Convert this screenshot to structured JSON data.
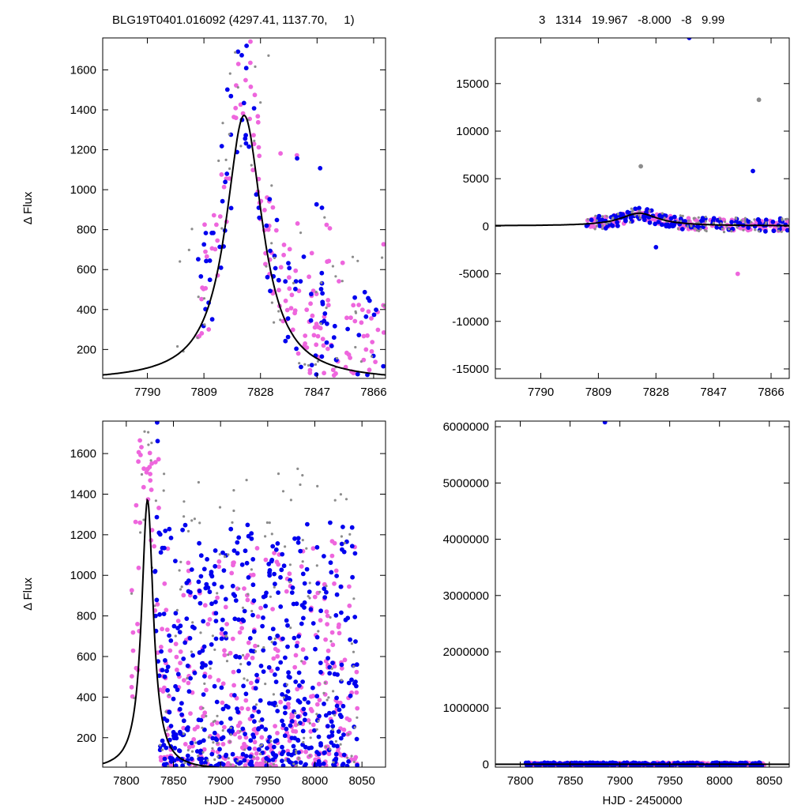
{
  "header": {
    "left": "BLG19T0401.016092 (4297.41, 1137.70,     1)",
    "right": "3   1314   19.967   -8.000   -8   9.99"
  },
  "colors": {
    "series_a": "#ee66dd",
    "series_b": "#0000ee",
    "series_c": "#8c8c8c",
    "model": "#000000",
    "axis": "#000000"
  },
  "chart_data": [
    {
      "id": "top-left",
      "type": "scatter",
      "xlim": [
        7775,
        7870
      ],
      "ylim": [
        55,
        1760
      ],
      "xticks": [
        7790,
        7809,
        7828,
        7847,
        7866
      ],
      "yticks": [
        200,
        400,
        600,
        800,
        1000,
        1200,
        1400,
        1600
      ],
      "xlabel": "",
      "ylabel": "Δ Flux",
      "model": {
        "t0": 7822.5,
        "peak": 1372,
        "width": 9.5,
        "base": 40
      },
      "series": [
        {
          "color_key": "series_a",
          "seed": 11,
          "n": 170,
          "x": [
            7807,
            7870
          ],
          "spread": 0.55
        },
        {
          "color_key": "series_b",
          "seed": 23,
          "n": 110,
          "x": [
            7807,
            7870
          ],
          "spread": 0.6
        },
        {
          "color_key": "series_c",
          "seed": 37,
          "n": 70,
          "x": [
            7800,
            7870
          ],
          "spread": 0.9
        }
      ]
    },
    {
      "id": "top-right",
      "type": "scatter",
      "xlim": [
        7775,
        7872
      ],
      "ylim": [
        -16000,
        19800
      ],
      "xticks": [
        7790,
        7809,
        7828,
        7847,
        7866
      ],
      "yticks": [
        -15000,
        -10000,
        -5000,
        0,
        5000,
        10000,
        15000
      ],
      "xlabel": "",
      "ylabel": "",
      "model": {
        "t0": 7822.5,
        "peak": 1372,
        "width": 9.5,
        "base": 40
      },
      "series": [
        {
          "color_key": "series_a",
          "seed": 51,
          "n": 170,
          "x": [
            7805,
            7872
          ],
          "spread": 0.35
        },
        {
          "color_key": "series_b",
          "seed": 63,
          "n": 130,
          "x": [
            7805,
            7872
          ],
          "spread": 0.45
        },
        {
          "color_key": "series_c",
          "seed": 77,
          "n": 90,
          "x": [
            7805,
            7872
          ],
          "spread": 0.6
        }
      ],
      "outliers": [
        {
          "x": 7839,
          "y": 19800,
          "color_key": "series_b"
        },
        {
          "x": 7862,
          "y": 13300,
          "color_key": "series_c"
        },
        {
          "x": 7823,
          "y": 6300,
          "color_key": "series_c"
        },
        {
          "x": 7860,
          "y": 5800,
          "color_key": "series_b"
        },
        {
          "x": 7855,
          "y": -5000,
          "color_key": "series_a"
        },
        {
          "x": 7828,
          "y": -2200,
          "color_key": "series_b"
        }
      ]
    },
    {
      "id": "bottom-left",
      "type": "scatter",
      "xlim": [
        7775,
        8075
      ],
      "ylim": [
        55,
        1760
      ],
      "xticks": [
        7800,
        7850,
        7900,
        7950,
        8000,
        8050
      ],
      "yticks": [
        200,
        400,
        600,
        800,
        1000,
        1200,
        1400,
        1600
      ],
      "xlabel": "HJD - 2450000",
      "ylabel": "Δ Flux",
      "model": {
        "t0": 7822.5,
        "peak": 1372,
        "width": 9.5,
        "base": 40
      },
      "series": [
        {
          "color_key": "series_a",
          "seed": 91,
          "n": 420,
          "x": [
            7805,
            8045
          ],
          "spread": 0.75
        },
        {
          "color_key": "series_b",
          "seed": 103,
          "n": 520,
          "x": [
            7830,
            8045
          ],
          "spread": 0.8
        },
        {
          "color_key": "series_c",
          "seed": 117,
          "n": 200,
          "x": [
            7805,
            8045
          ],
          "spread": 1.0
        }
      ]
    },
    {
      "id": "bottom-right",
      "type": "scatter",
      "xlim": [
        7775,
        8070
      ],
      "ylim": [
        -50000,
        6100000
      ],
      "xticks": [
        7800,
        7850,
        7900,
        7950,
        8000,
        8050
      ],
      "yticks": [
        0,
        1000000,
        2000000,
        3000000,
        4000000,
        5000000,
        6000000
      ],
      "xlabel": "HJD - 2450000",
      "ylabel": "",
      "model": {
        "t0": 7822.5,
        "peak": 1372,
        "width": 9.5,
        "base": 40
      },
      "series": [
        {
          "color_key": "series_a",
          "seed": 131,
          "n": 300,
          "x": [
            7805,
            8045
          ],
          "spread": 0.0
        },
        {
          "color_key": "series_b",
          "seed": 147,
          "n": 320,
          "x": [
            7805,
            8045
          ],
          "spread": 0.0
        }
      ],
      "outliers": [
        {
          "x": 7885,
          "y": 6080000,
          "color_key": "series_b"
        }
      ]
    }
  ]
}
